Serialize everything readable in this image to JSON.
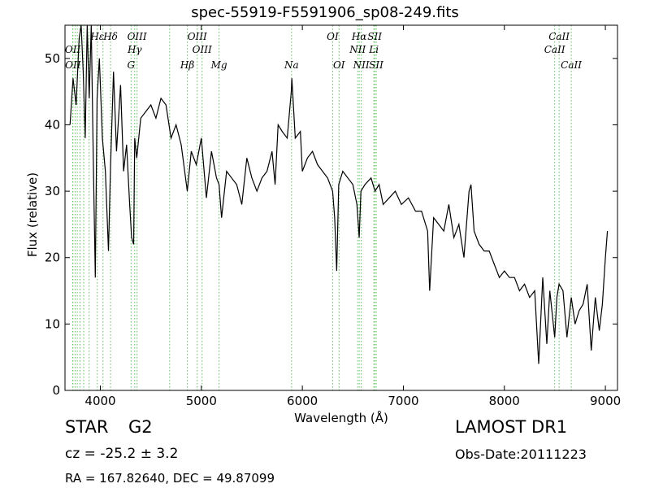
{
  "header": {
    "title": "spec-55919-F5591906_sp08-249.fits"
  },
  "info": {
    "object_class": "STAR",
    "subclass": "G2",
    "survey": "LAMOST DR1",
    "cz": "cz = -25.2 ± 3.2",
    "obs_date": "Obs-Date:20111223",
    "radec": "RA = 167.82640, DEC = 49.87099"
  },
  "colors": {
    "line": "#000000",
    "marker_lines": "#5fbf5f",
    "frame": "#000000"
  },
  "chart_data": {
    "type": "line",
    "title": "spec-55919-F5591906_sp08-249.fits",
    "xlabel": "Wavelength (Å)",
    "ylabel": "Flux (relative)",
    "xlim": [
      3650,
      9120
    ],
    "ylim": [
      0,
      55
    ],
    "xticks": [
      4000,
      5000,
      6000,
      7000,
      8000,
      9000
    ],
    "yticks": [
      0,
      10,
      20,
      30,
      40,
      50
    ],
    "grid": false,
    "series": [
      {
        "name": "",
        "x": [
          3700,
          3730,
          3760,
          3790,
          3810,
          3830,
          3850,
          3870,
          3890,
          3910,
          3930,
          3950,
          3968,
          3990,
          4020,
          4050,
          4080,
          4101,
          4130,
          4160,
          4200,
          4230,
          4260,
          4290,
          4310,
          4330,
          4340,
          4360,
          4400,
          4450,
          4500,
          4550,
          4600,
          4650,
          4700,
          4750,
          4800,
          4861,
          4900,
          4950,
          5000,
          5050,
          5100,
          5150,
          5175,
          5200,
          5250,
          5300,
          5350,
          5400,
          5450,
          5500,
          5550,
          5600,
          5650,
          5700,
          5730,
          5760,
          5800,
          5850,
          5890,
          5896,
          5930,
          5980,
          6000,
          6050,
          6100,
          6150,
          6200,
          6250,
          6300,
          6320,
          6340,
          6360,
          6400,
          6450,
          6500,
          6540,
          6563,
          6580,
          6620,
          6680,
          6720,
          6760,
          6800,
          6860,
          6920,
          6980,
          7050,
          7120,
          7180,
          7240,
          7260,
          7300,
          7350,
          7400,
          7450,
          7500,
          7550,
          7600,
          7650,
          7670,
          7700,
          7750,
          7800,
          7850,
          7900,
          7950,
          8000,
          8050,
          8100,
          8150,
          8200,
          8250,
          8300,
          8340,
          8380,
          8420,
          8450,
          8498,
          8520,
          8542,
          8580,
          8620,
          8662,
          8700,
          8740,
          8780,
          8820,
          8860,
          8900,
          8940,
          8970,
          9000,
          9020
        ],
        "values": [
          40,
          47,
          43,
          53,
          57,
          48,
          38,
          55,
          44,
          56,
          35,
          17,
          44,
          50,
          38,
          33,
          21,
          34,
          48,
          36,
          46,
          33,
          37,
          28,
          23,
          22,
          38,
          35,
          41,
          42,
          43,
          41,
          44,
          43,
          38,
          40,
          37,
          30,
          36,
          34,
          38,
          29,
          36,
          32,
          31,
          26,
          33,
          32,
          31,
          28,
          35,
          32,
          30,
          32,
          33,
          36,
          31,
          40,
          39,
          38,
          45,
          47,
          38,
          39,
          33,
          35,
          36,
          34,
          33,
          32,
          30,
          26,
          18,
          31,
          33,
          32,
          31,
          28,
          23,
          30,
          31,
          32,
          30,
          31,
          28,
          29,
          30,
          28,
          29,
          27,
          27,
          24,
          15,
          26,
          25,
          24,
          28,
          23,
          25,
          20,
          30,
          31,
          24,
          22,
          21,
          21,
          19,
          17,
          18,
          17,
          17,
          15,
          16,
          14,
          15,
          4,
          17,
          7,
          15,
          8,
          14,
          16,
          15,
          8,
          14,
          10,
          12,
          13,
          16,
          6,
          14,
          9,
          13,
          20,
          24
        ]
      }
    ],
    "line_markers": {
      "top": [
        {
          "label": "Hε",
          "x": 3970
        },
        {
          "label": "Hδ",
          "x": 4101
        },
        {
          "label": "OIII",
          "x": 4363
        },
        {
          "label": "OIII",
          "x": 4959
        },
        {
          "label": "OI",
          "x": 6300
        },
        {
          "label": "Hα",
          "x": 6563
        },
        {
          "label": "SII",
          "x": 6716
        },
        {
          "label": "CaII",
          "x": 8542
        }
      ],
      "second": [
        {
          "label": "OII",
          "x": 3727
        },
        {
          "label": "Hγ",
          "x": 4340
        },
        {
          "label": "OIII",
          "x": 5007
        },
        {
          "label": "NII",
          "x": 6548
        },
        {
          "label": "Li",
          "x": 6708
        },
        {
          "label": "CaII",
          "x": 8498
        }
      ],
      "third": [
        {
          "label": "OII",
          "x": 3729
        },
        {
          "label": "G",
          "x": 4304
        },
        {
          "label": "Hβ",
          "x": 4861
        },
        {
          "label": "Mg",
          "x": 5175
        },
        {
          "label": "Na",
          "x": 5893
        },
        {
          "label": "OI",
          "x": 6363
        },
        {
          "label": "NII",
          "x": 6583
        },
        {
          "label": "SII",
          "x": 6731
        },
        {
          "label": "CaII",
          "x": 8662
        }
      ],
      "extra_lines": [
        3750,
        3771,
        3798,
        3835,
        3889,
        4026,
        4686
      ]
    }
  }
}
